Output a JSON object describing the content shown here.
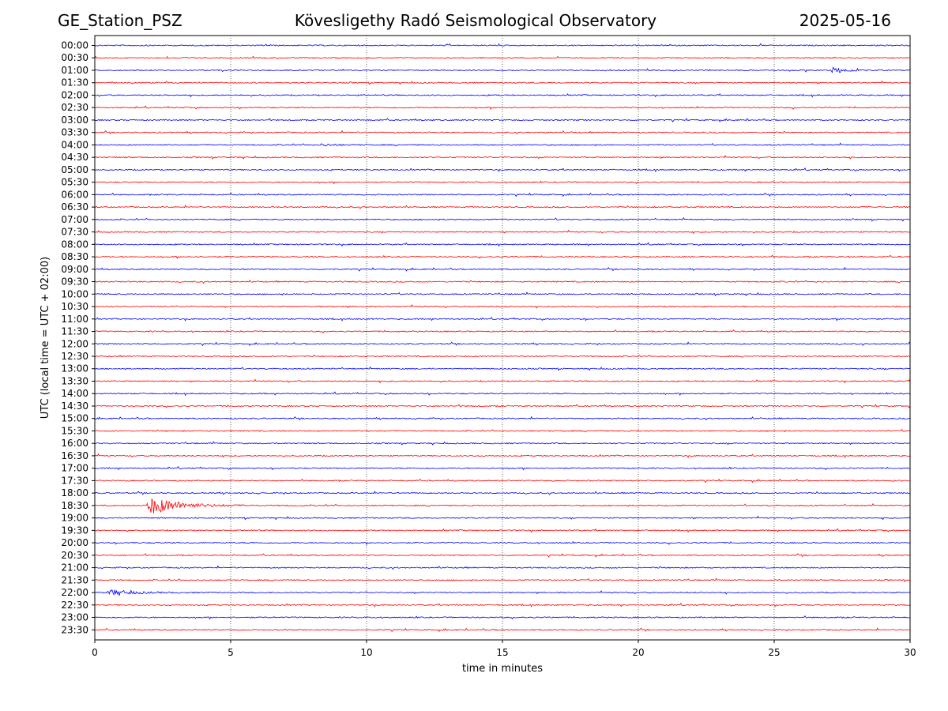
{
  "header": {
    "station": "GE_Station_PSZ",
    "observatory": "Kövesligethy Radó Seismological Observatory",
    "date": "2025-05-16"
  },
  "chart_data": {
    "type": "line",
    "subtype": "helicorder",
    "xlabel": "time in minutes",
    "ylabel": "UTC (local time = UTC + 02:00)",
    "xlim": [
      0,
      30
    ],
    "xticks": [
      0,
      5,
      10,
      15,
      20,
      25,
      30
    ],
    "vertical_grid_at": [
      5,
      10,
      15,
      20,
      25
    ],
    "grid": "dotted vertical",
    "colors": [
      "#0000ff",
      "#ff0000"
    ],
    "rows": [
      "00:00",
      "00:30",
      "01:00",
      "01:30",
      "02:00",
      "02:30",
      "03:00",
      "03:30",
      "04:00",
      "04:30",
      "05:00",
      "05:30",
      "06:00",
      "06:30",
      "07:00",
      "07:30",
      "08:00",
      "08:30",
      "09:00",
      "09:30",
      "10:00",
      "10:30",
      "11:00",
      "11:30",
      "12:00",
      "12:30",
      "13:00",
      "13:30",
      "14:00",
      "14:30",
      "15:00",
      "15:30",
      "16:00",
      "16:30",
      "17:00",
      "17:30",
      "18:00",
      "18:30",
      "19:00",
      "19:30",
      "20:00",
      "20:30",
      "21:00",
      "21:30",
      "22:00",
      "22:30",
      "23:00",
      "23:30"
    ],
    "events": [
      {
        "row": "01:00",
        "start_min": 27.1,
        "end_min": 28.8,
        "amplitude": 0.35
      },
      {
        "row": "04:00",
        "start_min": 8.3,
        "end_min": 9.8,
        "amplitude": 0.15
      },
      {
        "row": "18:30",
        "start_min": 1.9,
        "end_min": 5.8,
        "amplitude": 1.0
      },
      {
        "row": "22:00",
        "start_min": 0.45,
        "end_min": 3.6,
        "amplitude": 0.3
      }
    ]
  }
}
